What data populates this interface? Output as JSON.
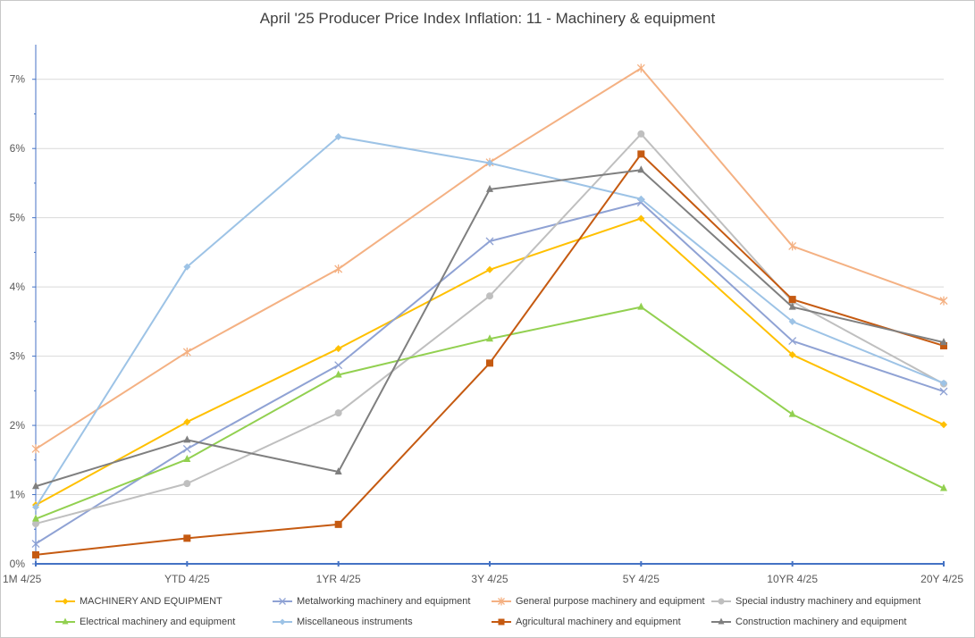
{
  "chart_data": {
    "type": "line",
    "title": "April '25 Producer Price Index Inflation: 11 - Machinery & equipment",
    "xlabel": "",
    "ylabel": "",
    "categories": [
      "1M 4/25",
      "YTD  4/25",
      "1YR 4/25",
      "3Y 4/25",
      "5Y 4/25",
      "10YR  4/25",
      "20Y 4/25"
    ],
    "y_ticks": [
      "0%",
      "1%",
      "2%",
      "3%",
      "4%",
      "5%",
      "6%",
      "7%"
    ],
    "ylim": [
      0,
      7.5
    ],
    "grid": true,
    "legend_position": "bottom",
    "series": [
      {
        "name": "MACHINERY AND EQUIPMENT",
        "color": "#FFC000",
        "marker": "diamond",
        "values": [
          0.85,
          2.05,
          3.11,
          4.25,
          4.99,
          3.02,
          2.01
        ]
      },
      {
        "name": "Metalworking machinery and equipment",
        "color": "#8FA2D4",
        "marker": "x",
        "values": [
          0.29,
          1.66,
          2.87,
          4.66,
          5.22,
          3.22,
          2.49
        ]
      },
      {
        "name": "General purpose machinery and equipment",
        "color": "#F4B183",
        "marker": "star",
        "values": [
          1.66,
          3.06,
          4.26,
          5.8,
          7.16,
          4.59,
          3.8
        ]
      },
      {
        "name": "Special industry machinery and equipment",
        "color": "#BFBFBF",
        "marker": "circle",
        "values": [
          0.58,
          1.16,
          2.18,
          3.87,
          6.21,
          3.79,
          2.6
        ]
      },
      {
        "name": "Electrical machinery and equipment",
        "color": "#92D050",
        "marker": "triangle",
        "values": [
          0.65,
          1.51,
          2.73,
          3.25,
          3.71,
          2.16,
          1.09
        ]
      },
      {
        "name": "Miscellaneous instruments",
        "color": "#9DC3E6",
        "marker": "diamond",
        "values": [
          0.82,
          4.29,
          6.17,
          5.79,
          5.27,
          3.5,
          2.61
        ]
      },
      {
        "name": "Agricultural machinery and equipment",
        "color": "#C55A11",
        "marker": "square",
        "values": [
          0.13,
          0.37,
          0.57,
          2.9,
          5.92,
          3.82,
          3.15
        ]
      },
      {
        "name": "Construction machinery and equipment",
        "color": "#7F7F7F",
        "marker": "triangle",
        "values": [
          1.12,
          1.79,
          1.33,
          5.41,
          5.69,
          3.71,
          3.2
        ]
      }
    ]
  }
}
